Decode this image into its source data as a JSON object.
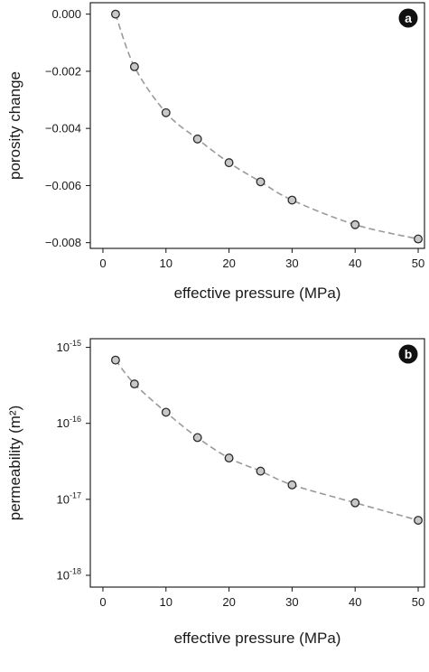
{
  "chart_data": [
    {
      "type": "scatter",
      "panel_label": "a",
      "xlabel": "effective pressure (MPa)",
      "ylabel": "porosity change",
      "xlim": [
        -2,
        51
      ],
      "ylim": [
        -0.0082,
        0.0004
      ],
      "x_ticks": [
        0,
        10,
        20,
        30,
        40,
        50
      ],
      "y_ticks": [
        0.0,
        -0.002,
        -0.004,
        -0.006,
        -0.008
      ],
      "y_tick_labels": [
        "0.000",
        "−0.002",
        "−0.004",
        "−0.006",
        "−0.008"
      ],
      "grid": false,
      "series": [
        {
          "x": [
            2,
            5,
            10,
            15,
            20,
            25,
            30,
            40,
            50
          ],
          "y": [
            0.0,
            -0.00184,
            -0.00345,
            -0.00437,
            -0.0052,
            -0.00587,
            -0.00651,
            -0.00737,
            -0.00787
          ],
          "style": "points with dashed fit line"
        }
      ]
    },
    {
      "type": "scatter",
      "panel_label": "b",
      "xlabel": "effective pressure (MPa)",
      "ylabel": "permeability (m²)",
      "y_scale": "log",
      "xlim": [
        -2,
        51
      ],
      "ylim": [
        7e-19,
        1.3e-15
      ],
      "x_ticks": [
        0,
        10,
        20,
        30,
        40,
        50
      ],
      "y_ticks": [
        1e-15,
        1e-16,
        1e-17,
        1e-18
      ],
      "y_tick_labels": [
        {
          "base": "10",
          "exp": "-15"
        },
        {
          "base": "10",
          "exp": "-16"
        },
        {
          "base": "10",
          "exp": "-17"
        },
        {
          "base": "10",
          "exp": "-18"
        }
      ],
      "grid": false,
      "series": [
        {
          "x": [
            2,
            5,
            10,
            15,
            20,
            25,
            30,
            40,
            50
          ],
          "y": [
            6.8e-16,
            3.3e-16,
            1.4e-16,
            6.5e-17,
            3.5e-17,
            2.35e-17,
            1.55e-17,
            9e-18,
            5.3e-18
          ],
          "style": "points with dashed fit line"
        }
      ]
    }
  ]
}
